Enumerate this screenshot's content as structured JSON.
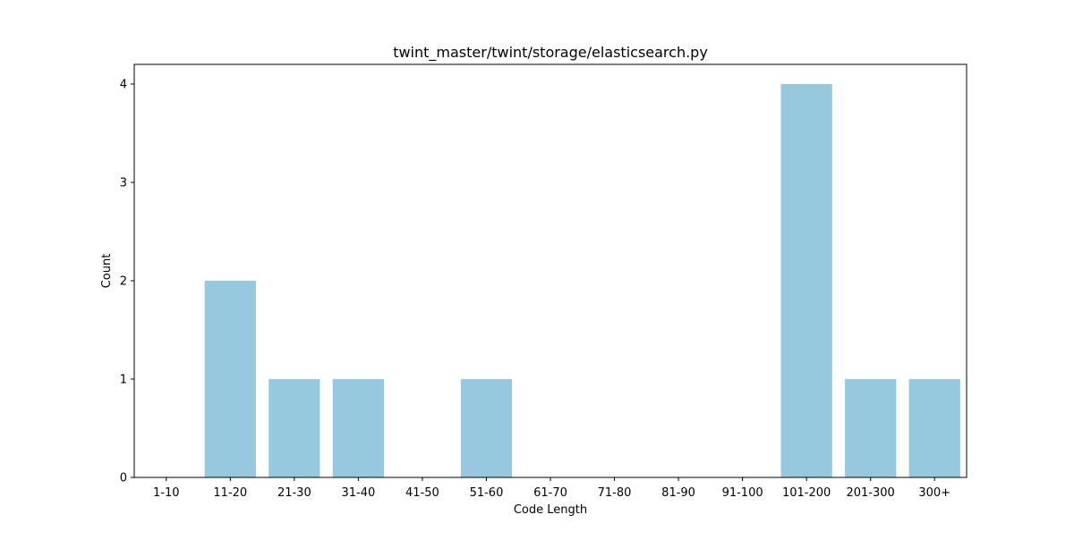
{
  "chart_data": {
    "type": "bar",
    "title": "twint_master/twint/storage/elasticsearch.py",
    "xlabel": "Code Length",
    "ylabel": "Count",
    "categories": [
      "1-10",
      "11-20",
      "21-30",
      "31-40",
      "41-50",
      "51-60",
      "61-70",
      "71-80",
      "81-90",
      "91-100",
      "101-200",
      "201-300",
      "300+"
    ],
    "values": [
      0,
      2,
      1,
      1,
      0,
      1,
      0,
      0,
      0,
      0,
      4,
      1,
      1
    ],
    "ylim": [
      0,
      4.2
    ],
    "yticks": [
      0,
      1,
      2,
      3,
      4
    ],
    "bar_color": "#96c9de",
    "grid": false,
    "legend": "none"
  }
}
